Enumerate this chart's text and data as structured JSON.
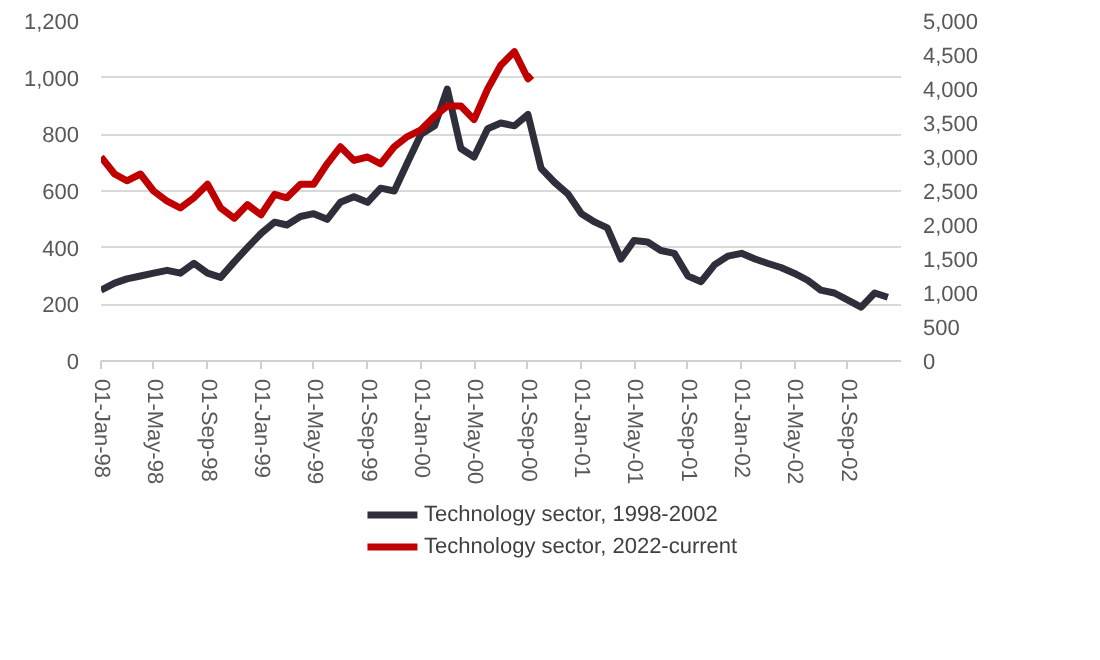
{
  "chart_data": {
    "type": "line",
    "x": [
      "1998-01-01",
      "1998-02-01",
      "1998-03-01",
      "1998-04-01",
      "1998-05-01",
      "1998-06-01",
      "1998-07-01",
      "1998-08-01",
      "1998-09-01",
      "1998-10-01",
      "1998-11-01",
      "1998-12-01",
      "1999-01-01",
      "1999-02-01",
      "1999-03-01",
      "1999-04-01",
      "1999-05-01",
      "1999-06-01",
      "1999-07-01",
      "1999-08-01",
      "1999-09-01",
      "1999-10-01",
      "1999-11-01",
      "1999-12-01",
      "2000-01-01",
      "2000-02-01",
      "2000-03-01",
      "2000-04-01",
      "2000-05-01",
      "2000-06-01",
      "2000-07-01",
      "2000-08-01",
      "2000-09-01",
      "2000-10-01",
      "2000-11-01",
      "2000-12-01",
      "2001-01-01",
      "2001-02-01",
      "2001-03-01",
      "2001-04-01",
      "2001-05-01",
      "2001-06-01",
      "2001-07-01",
      "2001-08-01",
      "2001-09-01",
      "2001-10-01",
      "2001-11-01",
      "2001-12-01",
      "2002-01-01",
      "2002-02-01",
      "2002-03-01",
      "2002-04-01",
      "2002-05-01",
      "2002-06-01",
      "2002-07-01",
      "2002-08-01",
      "2002-09-01",
      "2002-10-01",
      "2002-11-01",
      "2002-12-01"
    ],
    "series": [
      {
        "name": "Technology sector, 1998-2002",
        "color": "#2e2f3a",
        "values": [
          250,
          275,
          290,
          300,
          310,
          320,
          310,
          345,
          310,
          295,
          350,
          400,
          450,
          490,
          480,
          510,
          520,
          500,
          560,
          580,
          560,
          610,
          600,
          700,
          800,
          830,
          960,
          750,
          720,
          820,
          840,
          830,
          870,
          680,
          630,
          590,
          520,
          490,
          470,
          360,
          425,
          420,
          390,
          380,
          300,
          280,
          340,
          370,
          380,
          360,
          345,
          330,
          310,
          285,
          250,
          240,
          215,
          190,
          240,
          225
        ]
      },
      {
        "name": "Technology sector, 2022-current",
        "color": "#c00000",
        "axis": "y2",
        "x": [
          "1998-01-01",
          "1998-02-01",
          "1998-03-01",
          "1998-04-01",
          "1998-05-01",
          "1998-06-01",
          "1998-07-01",
          "1998-08-01",
          "1998-09-01",
          "1998-10-01",
          "1998-11-01",
          "1998-12-01",
          "1999-01-01",
          "1999-02-01",
          "1999-03-01",
          "1999-04-01",
          "1999-05-01",
          "1999-06-01",
          "1999-07-01",
          "1999-08-01",
          "1999-09-01",
          "1999-10-01",
          "1999-11-01",
          "1999-12-01",
          "2000-01-01",
          "2000-02-01",
          "2000-03-01",
          "2000-04-01",
          "2000-05-01",
          "2000-06-01",
          "2000-07-01",
          "2000-08-01",
          "2000-09-01",
          "2000-09-10"
        ],
        "values": [
          3000,
          2750,
          2650,
          2750,
          2500,
          2350,
          2250,
          2400,
          2600,
          2250,
          2100,
          2300,
          2150,
          2450,
          2400,
          2600,
          2600,
          2900,
          3150,
          2950,
          3000,
          2900,
          3150,
          3300,
          3400,
          3600,
          3750,
          3750,
          3550,
          4000,
          4350,
          4550,
          4150,
          4200
        ]
      }
    ],
    "xlim": [
      "1998-01-01",
      "2002-12-31"
    ],
    "xticks": [
      {
        "value": "1998-01-01",
        "label": "01-Jan-98"
      },
      {
        "value": "1998-05-01",
        "label": "01-May-98"
      },
      {
        "value": "1998-09-01",
        "label": "01-Sep-98"
      },
      {
        "value": "1999-01-01",
        "label": "01-Jan-99"
      },
      {
        "value": "1999-05-01",
        "label": "01-May-99"
      },
      {
        "value": "1999-09-01",
        "label": "01-Sep-99"
      },
      {
        "value": "2000-01-01",
        "label": "01-Jan-00"
      },
      {
        "value": "2000-05-01",
        "label": "01-May-00"
      },
      {
        "value": "2000-09-01",
        "label": "01-Sep-00"
      },
      {
        "value": "2001-01-01",
        "label": "01-Jan-01"
      },
      {
        "value": "2001-05-01",
        "label": "01-May-01"
      },
      {
        "value": "2001-09-01",
        "label": "01-Sep-01"
      },
      {
        "value": "2002-01-01",
        "label": "01-Jan-02"
      },
      {
        "value": "2002-05-01",
        "label": "01-May-02"
      },
      {
        "value": "2002-09-01",
        "label": "01-Sep-02"
      }
    ],
    "ylim": [
      0,
      1200
    ],
    "yticks": [
      0,
      200,
      400,
      600,
      800,
      {
        "value": 1000,
        "label": "1,000"
      },
      {
        "value": 1200,
        "label": "1,200"
      }
    ],
    "y2lim": [
      0,
      5000
    ],
    "y2ticks": [
      0,
      500,
      {
        "value": 1000,
        "label": "1,000"
      },
      {
        "value": 1500,
        "label": "1,500"
      },
      {
        "value": 2000,
        "label": "2,000"
      },
      {
        "value": 2500,
        "label": "2,500"
      },
      {
        "value": 3000,
        "label": "3,000"
      },
      {
        "value": 3500,
        "label": "3,500"
      },
      {
        "value": 4000,
        "label": "4,000"
      },
      {
        "value": 4500,
        "label": "4,500"
      },
      {
        "value": 5000,
        "label": "5,000"
      }
    ],
    "grid": "y",
    "legend": "bottom",
    "marker": "none",
    "line_style": "solid"
  }
}
